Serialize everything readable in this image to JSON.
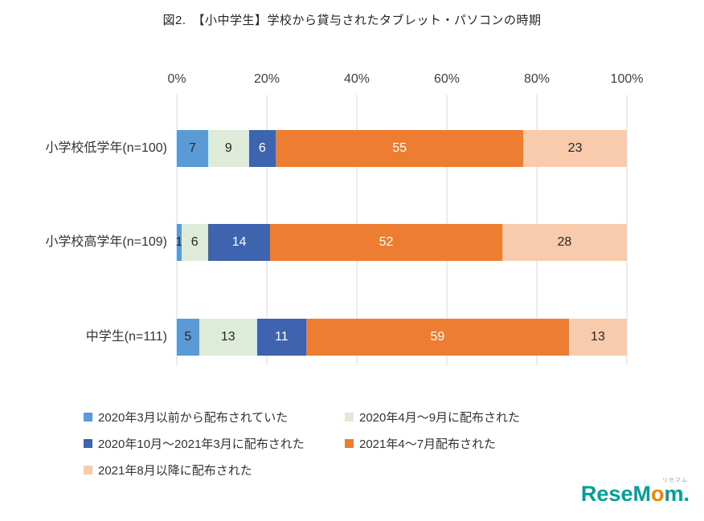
{
  "title": "図2.　【小中学生】学校から貸与されたタブレット・パソコンの時期",
  "chart_data": {
    "type": "bar",
    "stacked": true,
    "normalized": "100%",
    "orientation": "horizontal",
    "axis_position": "top",
    "grid": true,
    "xlim": [
      0,
      100
    ],
    "x_ticks": [
      "0%",
      "20%",
      "40%",
      "60%",
      "80%",
      "100%"
    ],
    "categories": [
      "小学校低学年(n=100)",
      "小学校高学年(n=109)",
      "中学生(n=111)"
    ],
    "series": [
      {
        "name": "2020年3月以前から配布されていた",
        "color": "#5B9BD5",
        "label_color": "#262626",
        "values": [
          7,
          1,
          5
        ]
      },
      {
        "name": "2020年4月〜9月に配布された",
        "color": "#DEEBD8",
        "label_color": "#262626",
        "values": [
          9,
          6,
          13
        ]
      },
      {
        "name": "2020年10月〜2021年3月に配布された",
        "color": "#3E64B0",
        "label_color": "#FFFFFF",
        "values": [
          6,
          14,
          11
        ]
      },
      {
        "name": "2021年4〜7月配布された",
        "color": "#ED7D31",
        "label_color": "#FFFFFF",
        "values": [
          55,
          52,
          59
        ]
      },
      {
        "name": "2021年8月以降に配布された",
        "color": "#F8CBAD",
        "label_color": "#262626",
        "values": [
          23,
          28,
          13
        ]
      }
    ],
    "legend_position": "bottom"
  },
  "logo": {
    "part1": "Rese",
    "part2": "M",
    "part3": "o",
    "part4": "m",
    "period": ".",
    "ruby": "リセマム",
    "teal": "#00A097",
    "orange": "#F08300"
  }
}
